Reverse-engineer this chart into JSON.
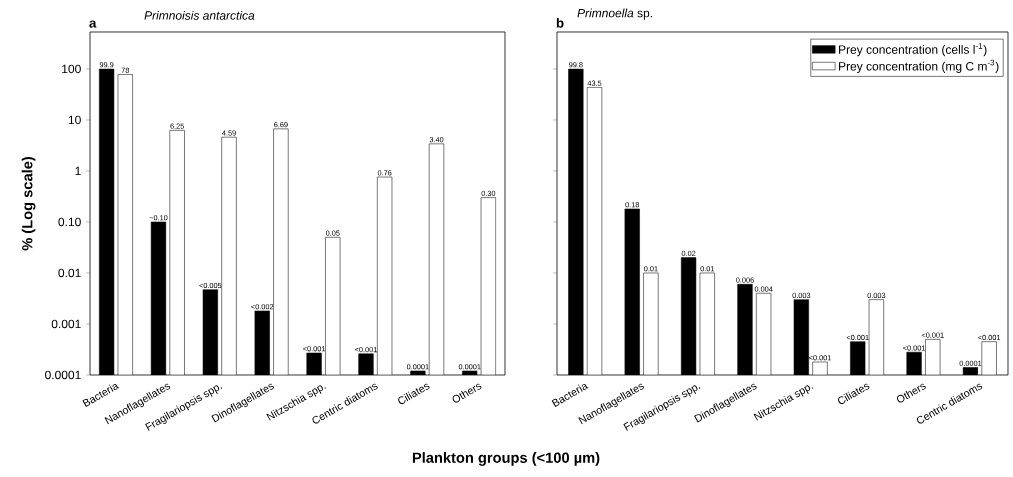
{
  "chart_data": [
    {
      "type": "bar",
      "title": "*Primnoisis antarctica*",
      "ylabel": "% (Log scale)",
      "xlabel": "Plankton groups (<100 µm)",
      "annotations": [
        "a"
      ],
      "categories": [
        "Bacteria",
        "Nanoflagellates",
        "Fragilariopsis spp.",
        "Dinoflagellates",
        "Nitzschia spp.",
        "Centric diatoms",
        "Ciliates",
        "Others"
      ],
      "log": true,
      "ylim": [
        0.0001,
        530
      ],
      "yticks": [
        0.0001,
        0.001,
        0.01,
        {
          "value": 0.1,
          "label": "0.10"
        },
        1,
        10,
        100
      ],
      "series": [
        {
          "color": "#000000",
          "values": [
            99.9,
            0.1,
            0.0047,
            0.0018,
            0.00027,
            0.00026,
            0.00012,
            0.00012
          ],
          "value_labels": [
            "99.9",
            "~0.10",
            "<0.005",
            "<0.002",
            "<0.001",
            "<0.001",
            "0.0001",
            "0.0001"
          ]
        },
        {
          "color": "#ffffff",
          "values": [
            78,
            6.25,
            4.59,
            6.69,
            0.05,
            0.76,
            3.4,
            0.3
          ],
          "value_labels": [
            "78",
            "6.25",
            "4.59",
            "6.69",
            "0.05",
            "0.76",
            "3.40",
            "0.30"
          ]
        }
      ]
    },
    {
      "type": "bar",
      "title": "*Primnoella* sp.",
      "annotations": [
        "b"
      ],
      "legend": "top right",
      "tick_labels": "x",
      "categories": [
        "Bacteria",
        "Nanoflagellates",
        "Fragilariopsis spp.",
        "Dinoflagellates",
        "Nitzschia spp.",
        "Ciliates",
        "Others",
        "Centric diatoms"
      ],
      "log": true,
      "ylim": [
        0.0001,
        530
      ],
      "yticks": [
        0.0001,
        0.001,
        0.01,
        0.1,
        1,
        10,
        100
      ],
      "series": [
        {
          "name": "Prey concentration (cells l$^{-1}$)",
          "color": "#000000",
          "values": [
            99.8,
            0.18,
            0.02,
            0.006,
            0.003,
            0.00045,
            0.00028,
            0.00014
          ],
          "value_labels": [
            "99.8",
            "0.18",
            "0.02",
            "0.006",
            "0.003",
            "<0.001",
            "<0.001",
            "0.0001"
          ]
        },
        {
          "name": "Prey concentration (mg C m$^{-3}$)",
          "color": "#ffffff",
          "values": [
            43.5,
            0.01,
            0.01,
            0.004,
            0.00018,
            0.003,
            0.0005,
            0.00045
          ],
          "value_labels": [
            "43.5",
            "0.01",
            "0.01",
            "0.004",
            "<0.001",
            "0.003",
            "<0.001",
            "<0.001"
          ]
        }
      ]
    }
  ]
}
